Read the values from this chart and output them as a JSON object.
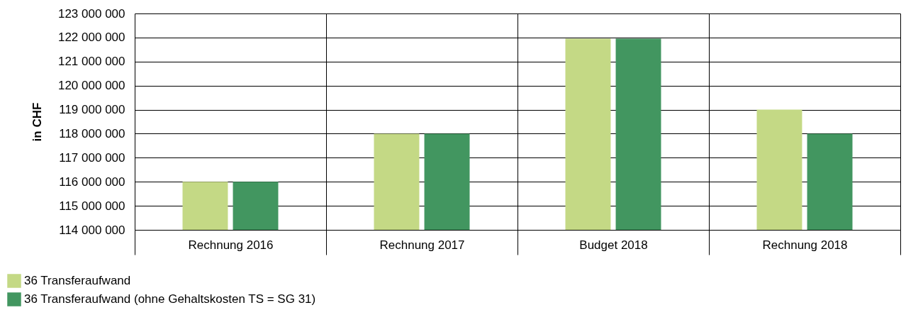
{
  "chart_data": {
    "type": "bar",
    "ylabel": "in CHF",
    "categories": [
      "Rechnung 2016",
      "Rechnung 2017",
      "Budget 2018",
      "Rechnung 2018"
    ],
    "series": [
      {
        "name": "36 Transferaufwand",
        "color": "#c4d985",
        "values": [
          116000000,
          118000000,
          121950000,
          119000000
        ]
      },
      {
        "name": "36 Transferaufwand (ohne Gehaltskosten TS = SG 31)",
        "color": "#429660",
        "values": [
          116000000,
          118000000,
          121950000,
          118000000
        ]
      }
    ],
    "ylim": [
      114000000,
      123000000
    ],
    "yticks": [
      {
        "value": 114000000,
        "label": "114 000 000"
      },
      {
        "value": 115000000,
        "label": "115 000 000"
      },
      {
        "value": 116000000,
        "label": "116 000 000"
      },
      {
        "value": 117000000,
        "label": "117 000 000"
      },
      {
        "value": 118000000,
        "label": "118 000 000"
      },
      {
        "value": 119000000,
        "label": "119 000 000"
      },
      {
        "value": 120000000,
        "label": "120 000 000"
      },
      {
        "value": 121000000,
        "label": "121 000 000"
      },
      {
        "value": 122000000,
        "label": "122 000 000"
      },
      {
        "value": 123000000,
        "label": "123 000 000"
      }
    ],
    "grid": true,
    "legend": "bottom left"
  }
}
